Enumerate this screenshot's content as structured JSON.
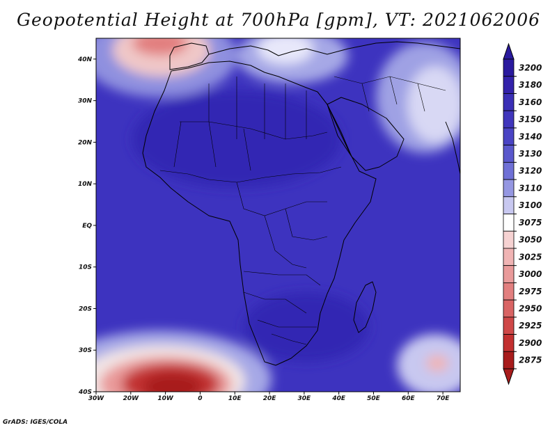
{
  "title": "Geopotential Height at 700hPa [gpm], VT: 2021062006",
  "credit": "GrADS: IGES/COLA",
  "map": {
    "lon_range": [
      -30,
      75
    ],
    "lat_range": [
      -40,
      45
    ],
    "x_ticks": [
      "30W",
      "20W",
      "10W",
      "0",
      "10E",
      "20E",
      "30E",
      "40E",
      "50E",
      "60E",
      "70E"
    ],
    "y_ticks": [
      "40N",
      "30N",
      "20N",
      "10N",
      "EQ",
      "10S",
      "20S",
      "30S",
      "40S"
    ]
  },
  "colorbar": {
    "levels": [
      "3200",
      "3180",
      "3160",
      "3150",
      "3140",
      "3130",
      "3120",
      "3110",
      "3100",
      "3075",
      "3050",
      "3025",
      "3000",
      "2975",
      "2950",
      "2925",
      "2900",
      "2875"
    ],
    "colors": [
      "#2a1a9e",
      "#3322aa",
      "#3a2fb6",
      "#4036bc",
      "#4a44c4",
      "#5a58cc",
      "#6f70d6",
      "#9597e2",
      "#c8c8f0",
      "#ffffff",
      "#f6d2d2",
      "#f0b4b4",
      "#e99a9a",
      "#e27f7f",
      "#d96464",
      "#cf4848",
      "#c23030",
      "#a81c1c"
    ]
  },
  "field_colors": {
    "ocean_base": "#3d33bf",
    "land_high": "#3127b3",
    "mid": "#6f70d6",
    "light": "#c8c8f0",
    "low_red": "#c23030",
    "deep_red": "#a81c1c"
  }
}
